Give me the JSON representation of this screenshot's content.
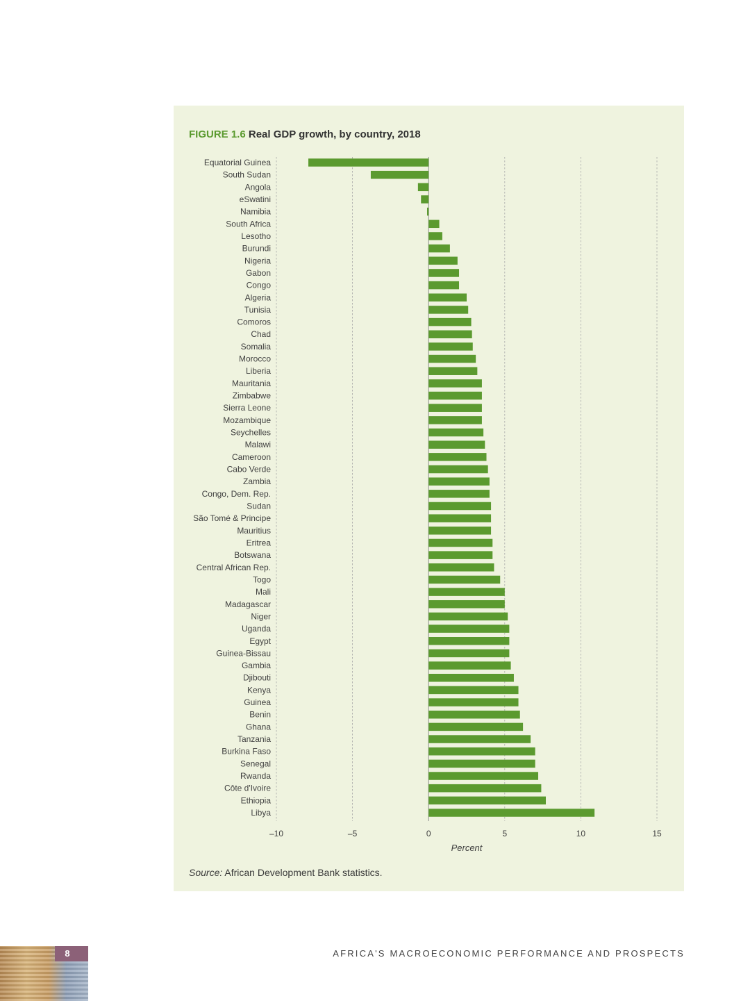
{
  "figure": {
    "number": "FIGURE 1.6",
    "title": "Real GDP growth, by country, 2018",
    "source_label": "Source:",
    "source_text": " African Development Bank statistics."
  },
  "footer": {
    "running_title": "AFRICA'S MACROECONOMIC PERFORMANCE AND PROSPECTS",
    "page_number": "8"
  },
  "colors": {
    "bar": "#5b9a2f",
    "panel": "#eff3df",
    "heading_accent": "#5b9a2f",
    "gridline": "#a8a8a8"
  },
  "chart_data": {
    "type": "bar",
    "orientation": "horizontal",
    "title": "Real GDP growth, by country, 2018",
    "xlabel": "Percent",
    "ylabel": "",
    "xlim": [
      -10,
      15
    ],
    "xticks": [
      -10,
      -5,
      0,
      5,
      10,
      15
    ],
    "xtick_labels": [
      "–10",
      "–5",
      "0",
      "5",
      "10",
      "15"
    ],
    "grid": "vertical dashed",
    "categories": [
      "Equatorial Guinea",
      "South Sudan",
      "Angola",
      "eSwatini",
      "Namibia",
      "South Africa",
      "Lesotho",
      "Burundi",
      "Nigeria",
      "Gabon",
      "Congo",
      "Algeria",
      "Tunisia",
      "Comoros",
      "Chad",
      "Somalia",
      "Morocco",
      "Liberia",
      "Mauritania",
      "Zimbabwe",
      "Sierra Leone",
      "Mozambique",
      "Seychelles",
      "Malawi",
      "Cameroon",
      "Cabo Verde",
      "Zambia",
      "Congo, Dem. Rep.",
      "Sudan",
      "São Tomé & Principe",
      "Mauritius",
      "Eritrea",
      "Botswana",
      "Central African Rep.",
      "Togo",
      "Mali",
      "Madagascar",
      "Niger",
      "Uganda",
      "Egypt",
      "Guinea-Bissau",
      "Gambia",
      "Djibouti",
      "Kenya",
      "Guinea",
      "Benin",
      "Ghana",
      "Tanzania",
      "Burkina Faso",
      "Senegal",
      "Rwanda",
      "Côte d'Ivoire",
      "Ethiopia",
      "Libya"
    ],
    "values": [
      -7.9,
      -3.8,
      -0.7,
      -0.5,
      -0.1,
      0.7,
      0.9,
      1.4,
      1.9,
      2.0,
      2.0,
      2.5,
      2.6,
      2.8,
      2.85,
      2.9,
      3.1,
      3.2,
      3.5,
      3.5,
      3.5,
      3.5,
      3.6,
      3.7,
      3.8,
      3.9,
      4.0,
      4.0,
      4.1,
      4.1,
      4.1,
      4.2,
      4.2,
      4.3,
      4.7,
      5.0,
      5.0,
      5.2,
      5.3,
      5.3,
      5.3,
      5.4,
      5.6,
      5.9,
      5.9,
      6.0,
      6.2,
      6.7,
      7.0,
      7.0,
      7.2,
      7.4,
      7.7,
      10.9
    ]
  }
}
